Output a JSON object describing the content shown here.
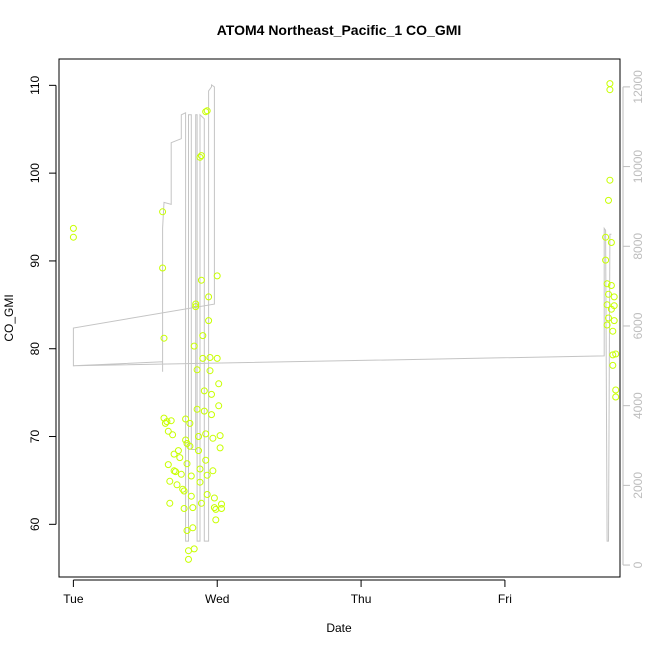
{
  "chart_data": {
    "type": "scatter",
    "title": "ATOM4 Northeast_Pacific_1 CO_GMI",
    "xlabel": "Date",
    "ylabel": "CO_GMI",
    "x_ticks": [
      {
        "label": "Tue",
        "day": 0
      },
      {
        "label": "Wed",
        "day": 1
      },
      {
        "label": "Thu",
        "day": 2
      },
      {
        "label": "Fri",
        "day": 3
      }
    ],
    "xlim_days": [
      -0.1,
      3.8
    ],
    "ylim": [
      54,
      113
    ],
    "yticks": [
      60,
      70,
      80,
      90,
      100,
      110
    ],
    "y2lim": [
      -300,
      12700
    ],
    "y2ticks": [
      0,
      2000,
      4000,
      6000,
      8000,
      10000,
      12000
    ],
    "colors": {
      "points": "#c8ff00",
      "line": "#c4c4c4"
    },
    "points": [
      [
        0.0,
        93.7
      ],
      [
        0.0,
        92.7
      ],
      [
        0.62,
        95.6
      ],
      [
        0.62,
        89.2
      ],
      [
        0.63,
        81.2
      ],
      [
        0.63,
        72.1
      ],
      [
        0.64,
        71.5
      ],
      [
        0.65,
        71.7
      ],
      [
        0.66,
        70.6
      ],
      [
        0.66,
        66.8
      ],
      [
        0.67,
        64.9
      ],
      [
        0.67,
        62.4
      ],
      [
        0.68,
        71.8
      ],
      [
        0.69,
        70.2
      ],
      [
        0.7,
        68.0
      ],
      [
        0.7,
        66.1
      ],
      [
        0.71,
        66.0
      ],
      [
        0.72,
        64.5
      ],
      [
        0.73,
        68.4
      ],
      [
        0.74,
        67.6
      ],
      [
        0.75,
        65.7
      ],
      [
        0.76,
        64.0
      ],
      [
        0.77,
        63.8
      ],
      [
        0.77,
        61.8
      ],
      [
        0.78,
        72.0
      ],
      [
        0.78,
        69.6
      ],
      [
        0.79,
        69.2
      ],
      [
        0.79,
        66.9
      ],
      [
        0.79,
        59.3
      ],
      [
        0.8,
        57.0
      ],
      [
        0.8,
        56.0
      ],
      [
        0.81,
        71.5
      ],
      [
        0.81,
        68.9
      ],
      [
        0.82,
        65.5
      ],
      [
        0.82,
        63.2
      ],
      [
        0.83,
        61.9
      ],
      [
        0.83,
        59.6
      ],
      [
        0.84,
        57.2
      ],
      [
        0.84,
        80.3
      ],
      [
        0.85,
        85.1
      ],
      [
        0.85,
        84.8
      ],
      [
        0.86,
        77.6
      ],
      [
        0.86,
        73.1
      ],
      [
        0.87,
        70.0
      ],
      [
        0.87,
        68.4
      ],
      [
        0.88,
        66.3
      ],
      [
        0.88,
        64.8
      ],
      [
        0.89,
        62.4
      ],
      [
        0.89,
        87.8
      ],
      [
        0.9,
        81.5
      ],
      [
        0.9,
        78.9
      ],
      [
        0.88,
        101.8
      ],
      [
        0.89,
        102.0
      ],
      [
        0.91,
        75.2
      ],
      [
        0.91,
        72.9
      ],
      [
        0.92,
        70.3
      ],
      [
        0.92,
        67.3
      ],
      [
        0.93,
        65.6
      ],
      [
        0.93,
        63.4
      ],
      [
        0.94,
        85.9
      ],
      [
        0.94,
        83.2
      ],
      [
        0.95,
        79.0
      ],
      [
        0.95,
        77.5
      ],
      [
        0.96,
        74.8
      ],
      [
        0.96,
        72.5
      ],
      [
        0.97,
        69.8
      ],
      [
        0.97,
        66.1
      ],
      [
        0.98,
        63.0
      ],
      [
        0.98,
        61.9
      ],
      [
        0.99,
        61.7
      ],
      [
        0.99,
        60.5
      ],
      [
        0.92,
        107.0
      ],
      [
        0.93,
        107.1
      ],
      [
        1.0,
        88.3
      ],
      [
        1.0,
        78.9
      ],
      [
        1.01,
        76.0
      ],
      [
        1.01,
        73.5
      ],
      [
        1.02,
        70.1
      ],
      [
        1.02,
        68.7
      ],
      [
        1.03,
        62.3
      ],
      [
        1.03,
        61.8
      ],
      [
        3.7,
        92.7
      ],
      [
        3.7,
        90.1
      ],
      [
        3.71,
        87.4
      ],
      [
        3.71,
        85.0
      ],
      [
        3.71,
        82.7
      ],
      [
        3.72,
        96.9
      ],
      [
        3.72,
        86.2
      ],
      [
        3.72,
        83.5
      ],
      [
        3.73,
        110.2
      ],
      [
        3.73,
        109.5
      ],
      [
        3.73,
        99.2
      ],
      [
        3.74,
        92.1
      ],
      [
        3.74,
        87.2
      ],
      [
        3.74,
        84.5
      ],
      [
        3.75,
        82.0
      ],
      [
        3.75,
        79.3
      ],
      [
        3.75,
        78.1
      ],
      [
        3.76,
        85.9
      ],
      [
        3.76,
        84.9
      ],
      [
        3.76,
        83.2
      ],
      [
        3.77,
        75.3
      ],
      [
        3.77,
        74.5
      ],
      [
        3.77,
        79.4
      ]
    ],
    "altitude_line": [
      [
        0.0,
        5950
      ],
      [
        0.0,
        5000
      ],
      [
        0.62,
        5100
      ],
      [
        0.62,
        4850
      ],
      [
        0.62,
        8450
      ],
      [
        0.63,
        9100
      ],
      [
        0.68,
        9050
      ],
      [
        0.68,
        10600
      ],
      [
        0.75,
        10700
      ],
      [
        0.75,
        11300
      ],
      [
        0.78,
        11350
      ],
      [
        0.78,
        600
      ],
      [
        0.8,
        600
      ],
      [
        0.8,
        11300
      ],
      [
        0.82,
        11300
      ],
      [
        0.82,
        2900
      ],
      [
        0.85,
        2900
      ],
      [
        0.85,
        11300
      ],
      [
        0.86,
        11300
      ],
      [
        0.86,
        600
      ],
      [
        0.88,
        600
      ],
      [
        0.88,
        11300
      ],
      [
        0.91,
        11200
      ],
      [
        0.91,
        600
      ],
      [
        0.94,
        600
      ],
      [
        0.94,
        11900
      ],
      [
        0.96,
        12000
      ],
      [
        0.96,
        12050
      ],
      [
        0.98,
        12000
      ],
      [
        0.98,
        6550
      ],
      [
        0.0,
        5950
      ],
      [
        0.0,
        5000
      ],
      [
        3.69,
        5250
      ],
      [
        3.69,
        8450
      ],
      [
        3.7,
        8400
      ],
      [
        3.71,
        600
      ],
      [
        3.72,
        600
      ],
      [
        3.73,
        8300
      ],
      [
        3.74,
        8300
      ]
    ]
  }
}
